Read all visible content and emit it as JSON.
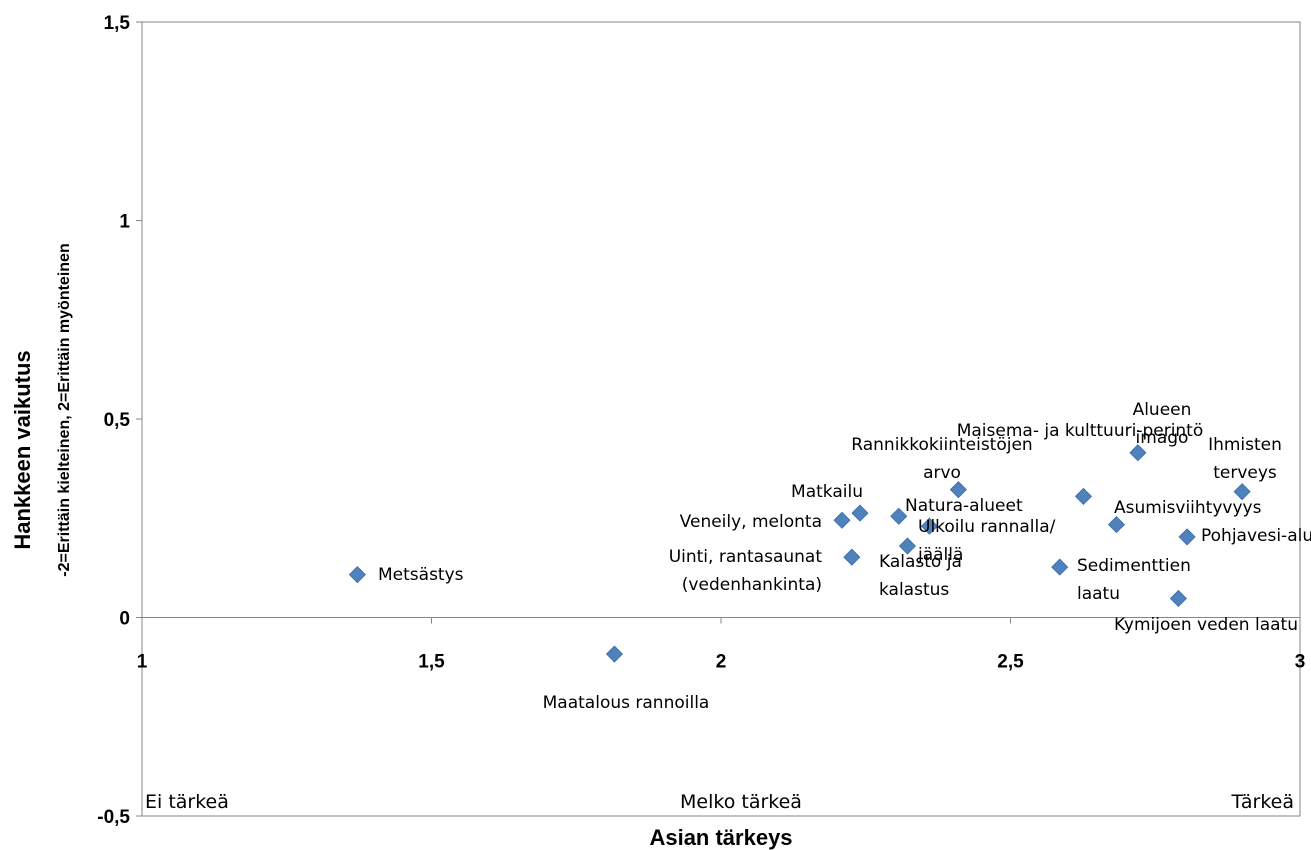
{
  "chart_data": {
    "type": "scatter",
    "title": "",
    "xlabel": "Asian tärkeys",
    "ylabel": "Hankkeen vaikutus",
    "ylabel_sub": "-2=Erittäin kielteinen, 2=Erittäin myönteinen",
    "xlim": [
      1,
      3
    ],
    "ylim": [
      -0.5,
      1.5
    ],
    "x_ticks": [
      {
        "value": 1,
        "label": "1"
      },
      {
        "value": 1.5,
        "label": "1,5"
      },
      {
        "value": 2,
        "label": "2"
      },
      {
        "value": 2.5,
        "label": "2,5"
      },
      {
        "value": 3,
        "label": "3"
      }
    ],
    "y_ticks": [
      {
        "value": -0.5,
        "label": "-0,5"
      },
      {
        "value": 0,
        "label": "0"
      },
      {
        "value": 0.5,
        "label": "0,5"
      },
      {
        "value": 1,
        "label": "1"
      },
      {
        "value": 1.5,
        "label": "1,5"
      }
    ],
    "grid": false,
    "legend": "none",
    "marker_color": "#4F81BD",
    "zone_labels": [
      {
        "text": "Ei tärkeä",
        "anchor": "left"
      },
      {
        "text": "Melko tärkeä",
        "anchor": "middle"
      },
      {
        "text": "Tärkeä",
        "anchor": "right"
      }
    ],
    "points": [
      {
        "name": "Metsästys",
        "x": 1.372,
        "y": 0.108
      },
      {
        "name": "Maatalous rannoilla",
        "x": 1.816,
        "y": -0.092
      },
      {
        "name": "Veneily, melonta",
        "x": 2.209,
        "y": 0.245
      },
      {
        "name": "Uinti, rantasaunat (vedenhankinta)",
        "x": 2.226,
        "y": 0.152
      },
      {
        "name": "Matkailu",
        "x": 2.24,
        "y": 0.263
      },
      {
        "name": "Natura-alueet",
        "x": 2.307,
        "y": 0.255
      },
      {
        "name": "Kalasto ja kalastus",
        "x": 2.322,
        "y": 0.18
      },
      {
        "name": "Ulkoilu rannalla/ jäällä",
        "x": 2.36,
        "y": 0.23
      },
      {
        "name": "Rannikkokiinteistöjen arvo",
        "x": 2.41,
        "y": 0.322
      },
      {
        "name": "Sedimenttien laatu",
        "x": 2.585,
        "y": 0.127
      },
      {
        "name": "Maisema- ja kulttuuri-perintö",
        "x": 2.626,
        "y": 0.305
      },
      {
        "name": "Asumisviihtyvyys",
        "x": 2.683,
        "y": 0.234
      },
      {
        "name": "Alueen imago",
        "x": 2.72,
        "y": 0.415
      },
      {
        "name": "Kymijoen veden laatu",
        "x": 2.79,
        "y": 0.048
      },
      {
        "name": "Pohjavesi-alueet",
        "x": 2.805,
        "y": 0.203
      },
      {
        "name": "Ihmisten terveys",
        "x": 2.9,
        "y": 0.317
      }
    ]
  }
}
